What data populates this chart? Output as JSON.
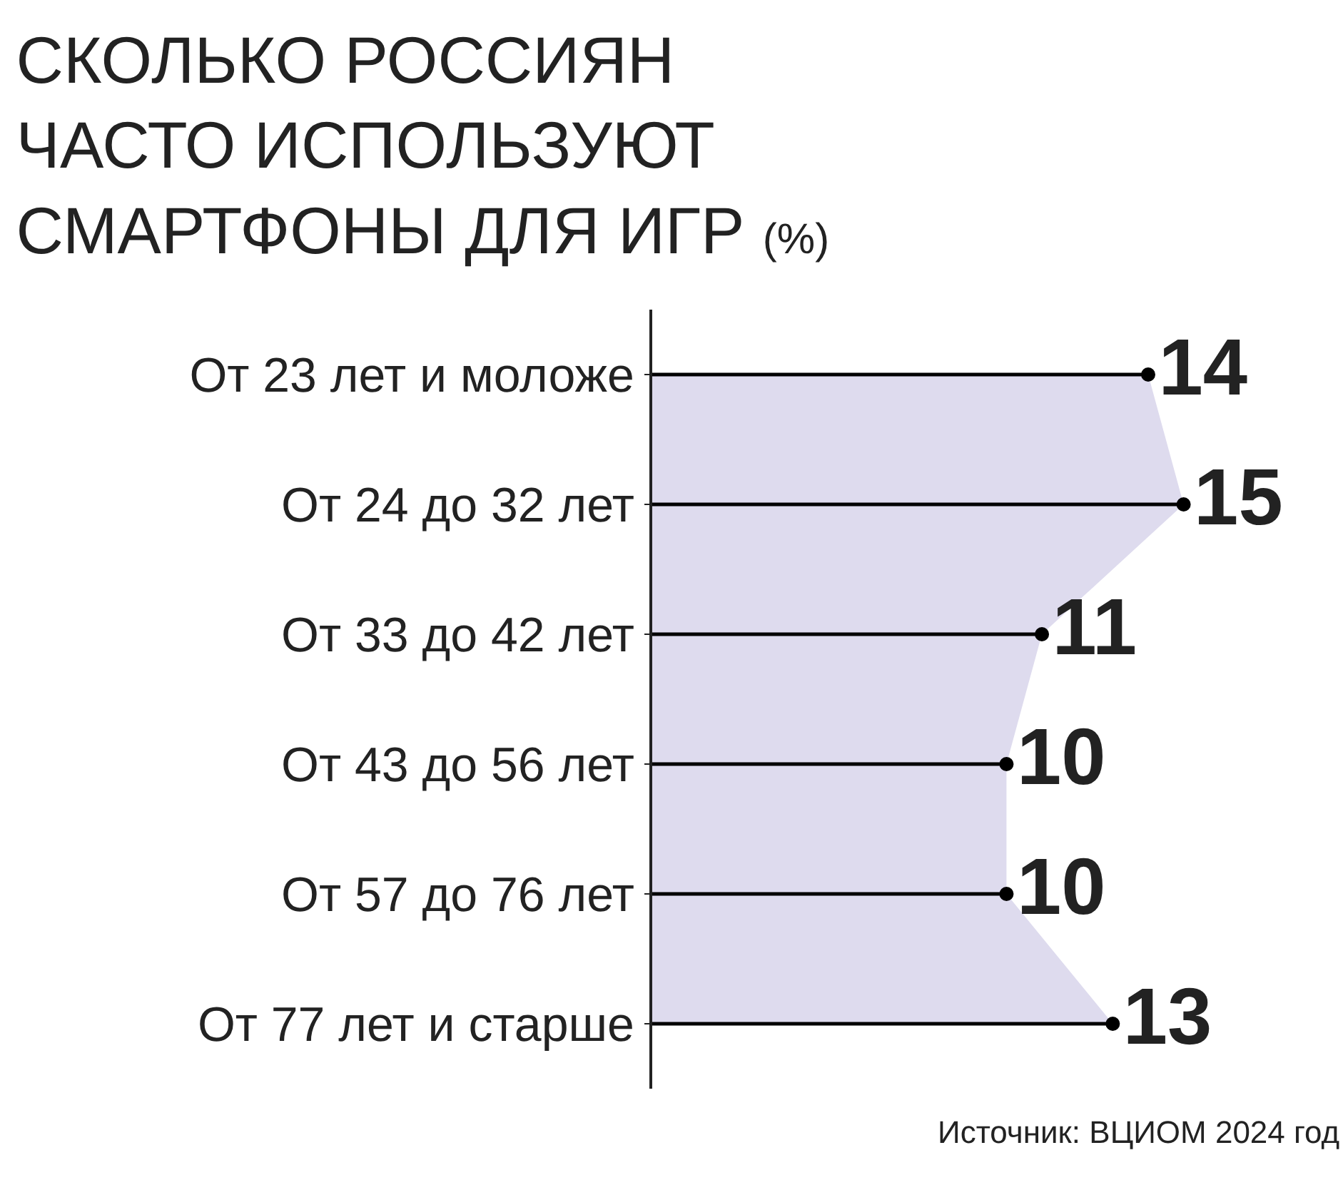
{
  "chart_data": {
    "type": "lollipop",
    "orientation": "horizontal",
    "title": "СКОЛЬКО РОССИЯН\nЧАСТО ИСПОЛЬЗУЮТ\nСМАРТФОНЫ ДЛЯ ИГР",
    "subtitle": "(%)",
    "categories": [
      "От 23 лет и моложе",
      "От 24 до 32 лет",
      "От 33 до 42 лет",
      "От 43 до 56 лет",
      "От 57 до 76 лет",
      "От 77 лет и старше"
    ],
    "xlim": [
      0,
      19.5
    ],
    "tick_labels": "y",
    "series": [
      {
        "type": "area",
        "color": "#dedbee",
        "values": [
          14,
          15,
          11,
          10,
          10,
          13
        ]
      },
      {
        "marker": "circle",
        "color": "#000000",
        "values": [
          14,
          15,
          11,
          10,
          10,
          13
        ],
        "value_labels": [
          "14",
          "15",
          "11",
          "10",
          "10",
          "13"
        ]
      }
    ],
    "annotations": [
      "Источник: ВЦИОМ 2024 год"
    ]
  }
}
